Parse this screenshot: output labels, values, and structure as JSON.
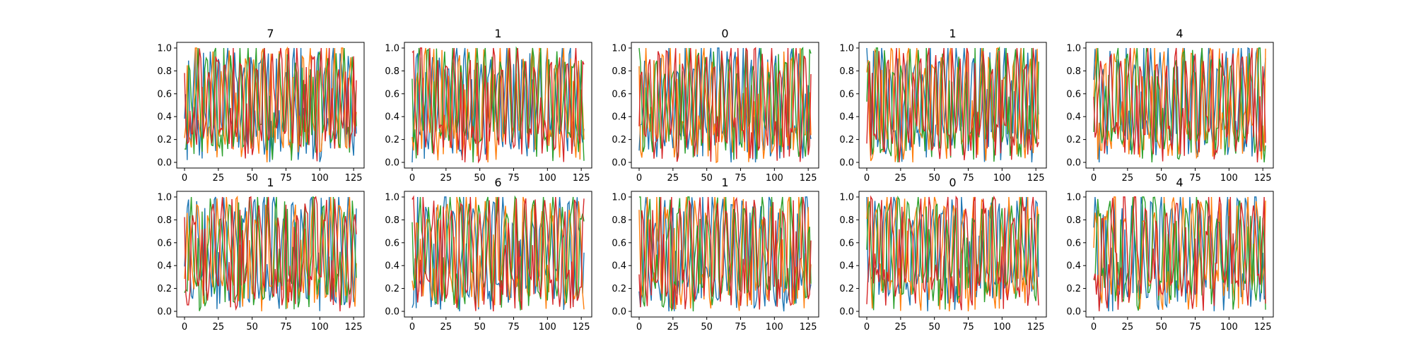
{
  "chart_data": {
    "type": "line",
    "layout": "grid",
    "rows": 2,
    "cols": 5,
    "series_colors": [
      "#1f77b4",
      "#ff7f0e",
      "#2ca02c",
      "#d62728"
    ],
    "xlim": [
      0,
      127
    ],
    "ylim": [
      0,
      1
    ],
    "x_ticks": [
      0,
      25,
      50,
      75,
      100,
      125
    ],
    "y_ticks": [
      "0.0",
      "0.2",
      "0.4",
      "0.6",
      "0.8",
      "1.0"
    ],
    "grid": false,
    "legend": "none",
    "points_per_series": 128,
    "subplots": [
      {
        "title": "7"
      },
      {
        "title": "1"
      },
      {
        "title": "0"
      },
      {
        "title": "1"
      },
      {
        "title": "4"
      },
      {
        "title": "1"
      },
      {
        "title": "6"
      },
      {
        "title": "1"
      },
      {
        "title": "0"
      },
      {
        "title": "4"
      }
    ]
  }
}
